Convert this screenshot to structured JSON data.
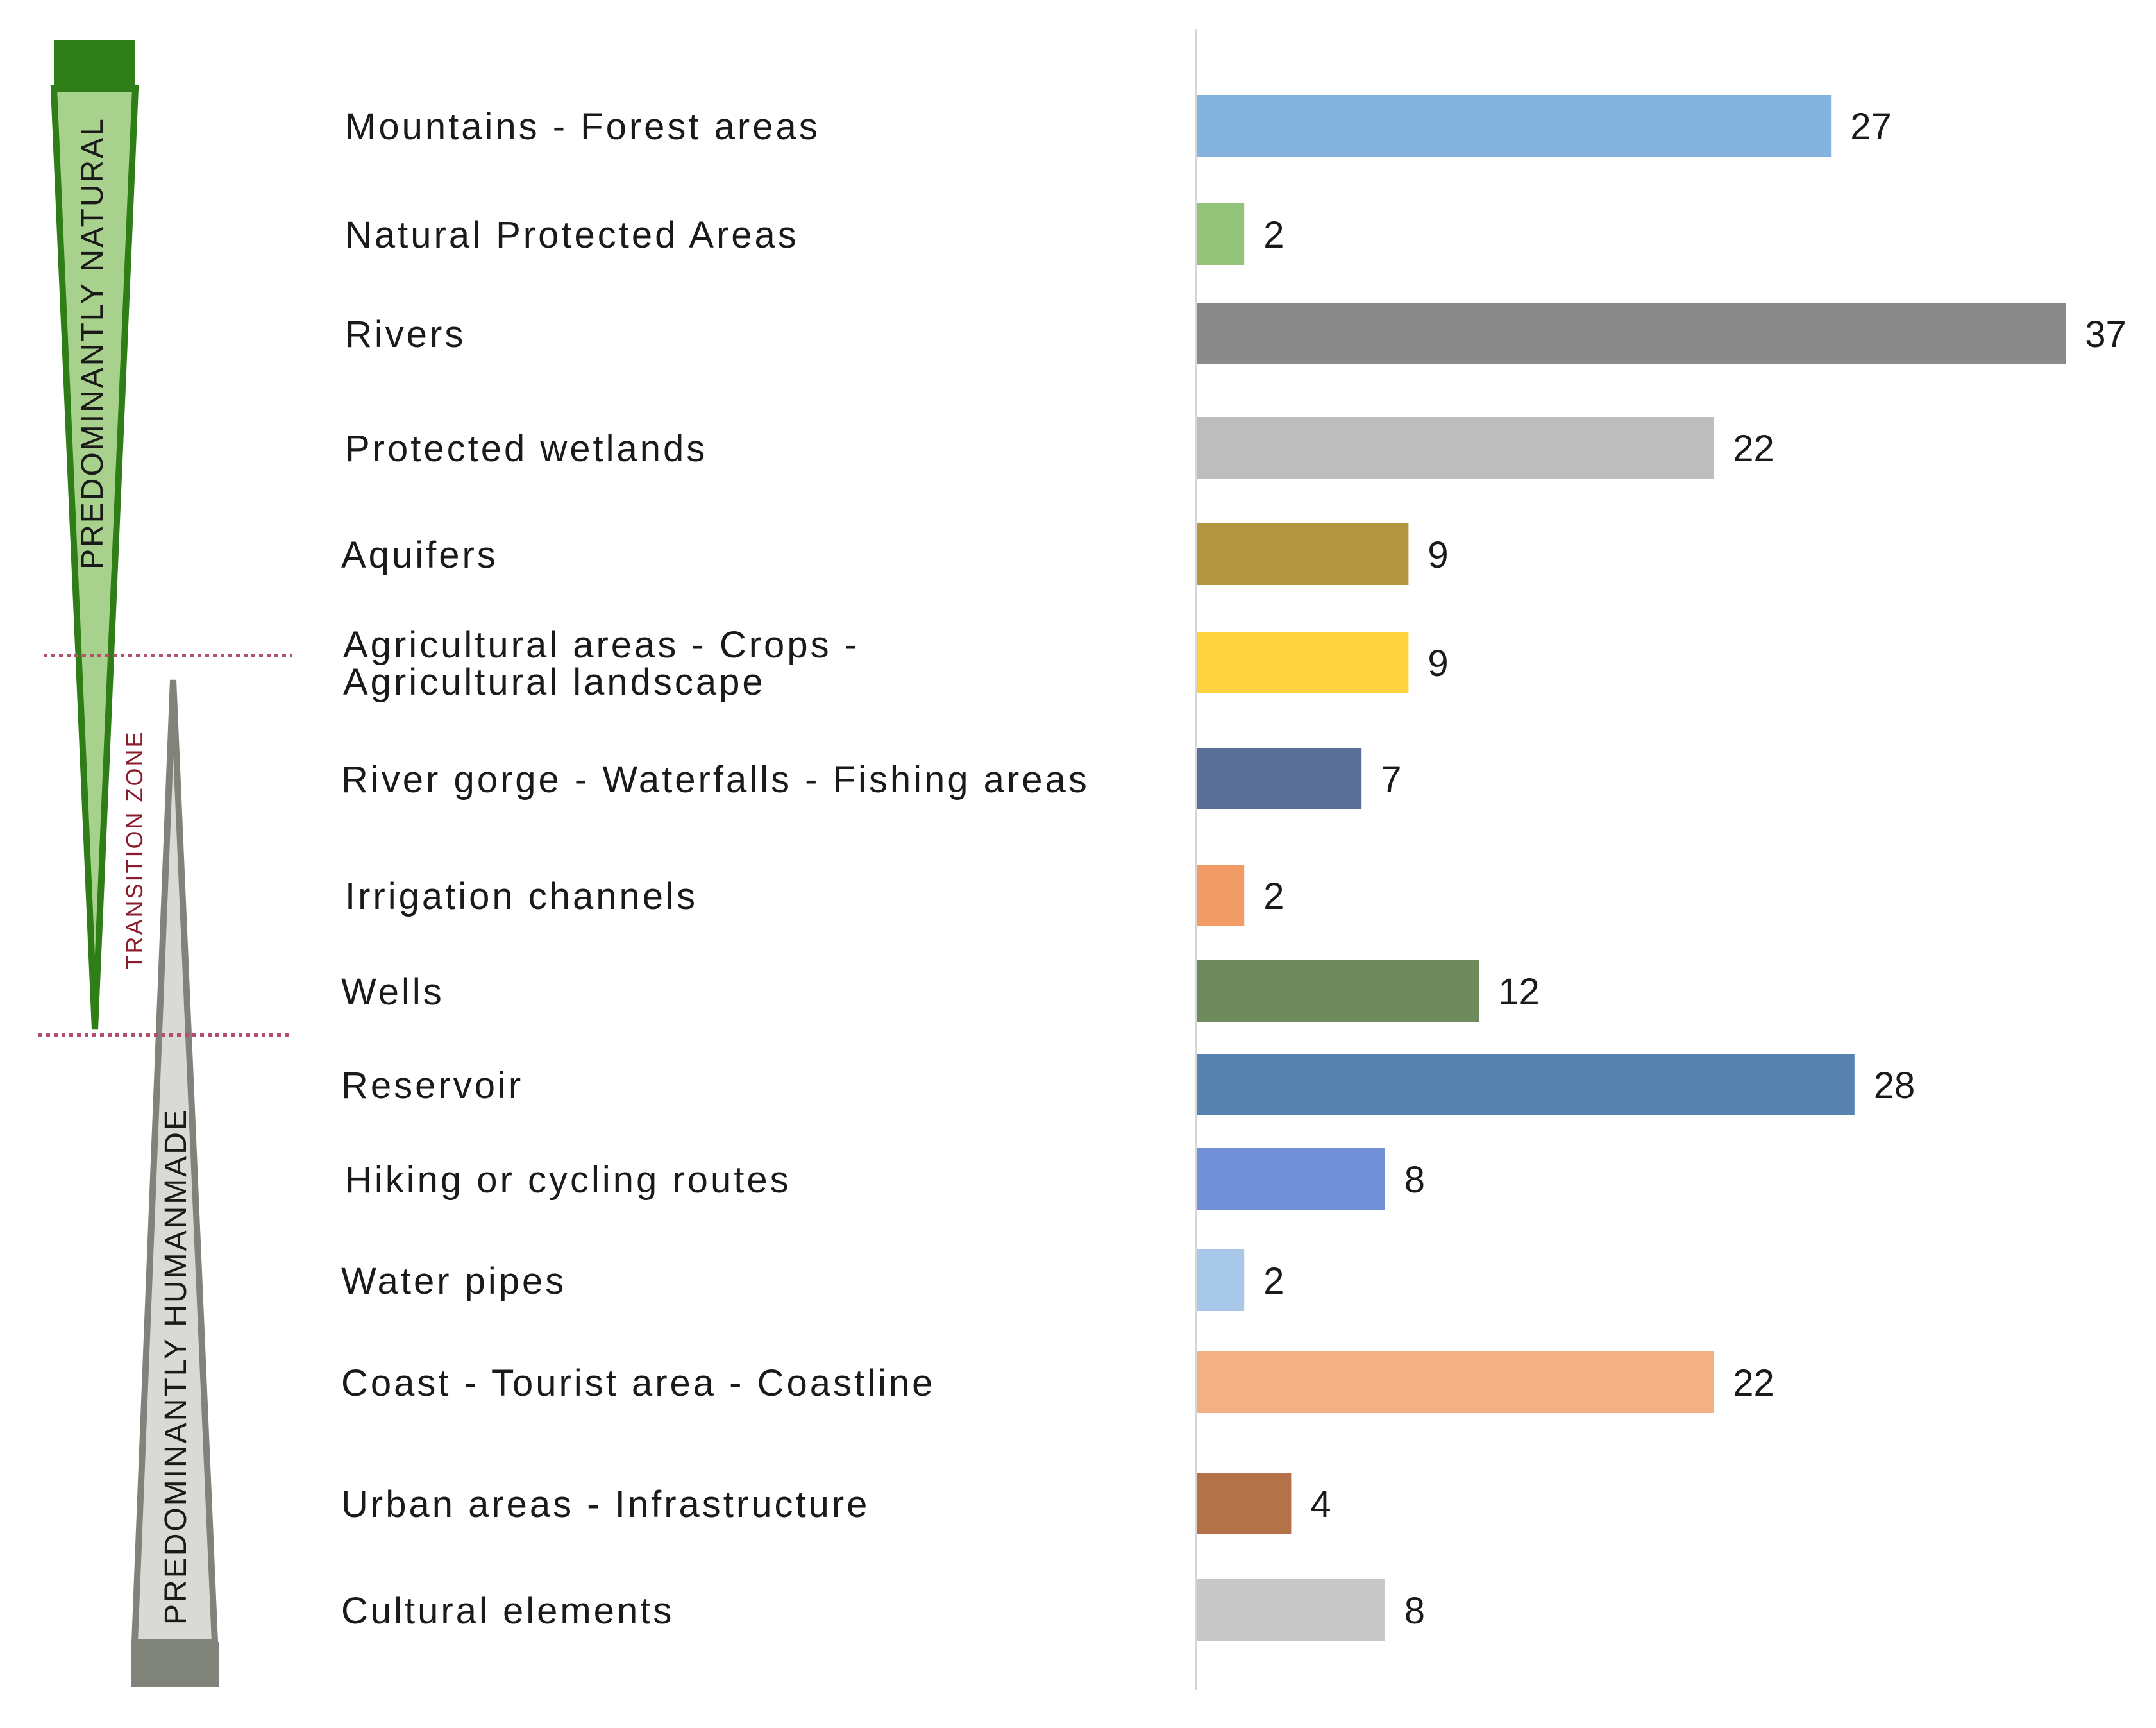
{
  "chart_data": {
    "type": "bar",
    "orientation": "horizontal",
    "categories": [
      [
        "Mountains - Forest areas"
      ],
      [
        "Natural Protected Areas"
      ],
      [
        "Rivers"
      ],
      [
        "Protected wetlands"
      ],
      [
        "Aquifers"
      ],
      [
        "Agricultural areas - Crops -",
        "Agricultural landscape"
      ],
      [
        "River gorge - Waterfalls - Fishing areas"
      ],
      [
        "Irrigation channels"
      ],
      [
        "Wells"
      ],
      [
        "Reservoir"
      ],
      [
        "Hiking or cycling routes"
      ],
      [
        "Water pipes"
      ],
      [
        "Coast - Tourist area - Coastline"
      ],
      [
        "Urban areas - Infrastructure"
      ],
      [
        "Cultural elements"
      ]
    ],
    "values": [
      27,
      2,
      37,
      22,
      9,
      9,
      7,
      2,
      12,
      28,
      8,
      2,
      22,
      4,
      8
    ],
    "colors": [
      "#84b3e0",
      "#94c47a",
      "#8a8a8a",
      "#bdbdbd",
      "#b59640",
      "#ffd340",
      "#5a6f98",
      "#f09c64",
      "#6f8a5c",
      "#5883b0",
      "#7190d8",
      "#a8c8ea",
      "#f4b084",
      "#b4724a",
      "#c8c8c8"
    ],
    "xlim": [
      0,
      37
    ],
    "grid": false,
    "legend": "none",
    "zones": [
      {
        "label": "PREDOMINANTLY NATURAL",
        "color": "#2e7d16",
        "fill": "#a9d18e"
      },
      {
        "label": "TRANSITION ZONE",
        "color": "#8b1c2c"
      },
      {
        "label": "PREDOMINANTLY HUMANMADE",
        "color": "#7f837a",
        "fill": "#d9d9d6"
      }
    ],
    "zone_divider_color": "#b0506a"
  }
}
